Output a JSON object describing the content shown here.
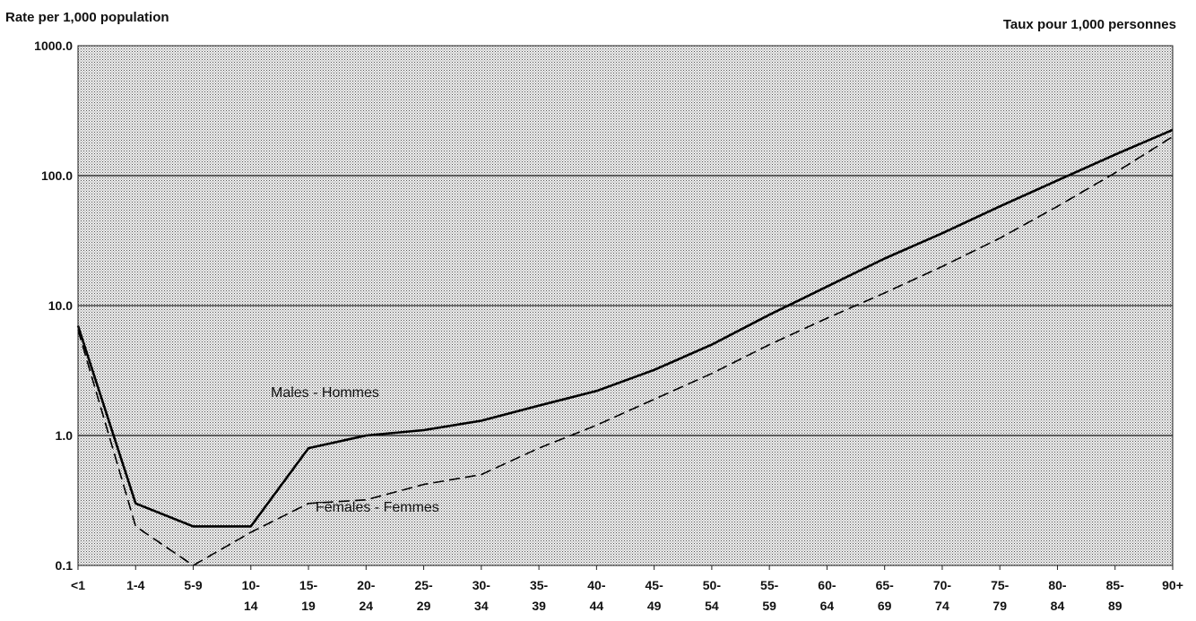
{
  "chart_data": {
    "type": "line",
    "ylabel_left": "Rate per 1,000 population",
    "ylabel_right": "Taux pour 1,000 personnes",
    "y_scale": "log",
    "ylim": [
      0.1,
      1000
    ],
    "y_ticks": [
      "0.1",
      "1.0",
      "10.0",
      "100.0",
      "1000.0"
    ],
    "categories": [
      "<1",
      "1-4",
      "5-9",
      "10-14",
      "15-19",
      "20-24",
      "25-29",
      "30-34",
      "35-39",
      "40-44",
      "45-49",
      "50-54",
      "55-59",
      "60-64",
      "65-69",
      "70-74",
      "75-79",
      "80-84",
      "85-89",
      "90+"
    ],
    "x_tick_labels": [
      [
        "<1"
      ],
      [
        "1-4"
      ],
      [
        "5-9"
      ],
      [
        "10-",
        "14"
      ],
      [
        "15-",
        "19"
      ],
      [
        "20-",
        "24"
      ],
      [
        "25-",
        "29"
      ],
      [
        "30-",
        "34"
      ],
      [
        "35-",
        "39"
      ],
      [
        "40-",
        "44"
      ],
      [
        "45-",
        "49"
      ],
      [
        "50-",
        "54"
      ],
      [
        "55-",
        "59"
      ],
      [
        "60-",
        "64"
      ],
      [
        "65-",
        "69"
      ],
      [
        "70-",
        "74"
      ],
      [
        "75-",
        "79"
      ],
      [
        "80-",
        "84"
      ],
      [
        "85-",
        "89"
      ],
      [
        "90+"
      ]
    ],
    "series": [
      {
        "name": "Males - Hommes",
        "style": "solid",
        "values": [
          7.0,
          0.3,
          0.2,
          0.2,
          0.8,
          1.0,
          1.1,
          1.3,
          1.7,
          2.2,
          3.2,
          5.0,
          8.5,
          14.0,
          23.0,
          36.0,
          58.0,
          92.0,
          145.0,
          225.0
        ]
      },
      {
        "name": "Females - Femmes",
        "style": "dashed",
        "values": [
          6.5,
          0.2,
          0.1,
          0.18,
          0.3,
          0.32,
          0.42,
          0.5,
          0.8,
          1.2,
          1.9,
          3.0,
          5.0,
          8.0,
          12.5,
          20.0,
          33.0,
          58.0,
          105.0,
          200.0
        ]
      }
    ],
    "grid": true,
    "gridlines_at": [
      1,
      10,
      100
    ]
  },
  "style": {
    "plot_background": "#cfcfcf",
    "line_color": "#000000",
    "grid_color": "#222222"
  }
}
